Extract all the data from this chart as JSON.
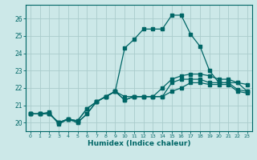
{
  "title": "",
  "xlabel": "Humidex (Indice chaleur)",
  "ylabel": "",
  "bg_color": "#cce8e8",
  "grid_color": "#aacccc",
  "line_color": "#006666",
  "xlim": [
    -0.5,
    23.5
  ],
  "ylim": [
    19.5,
    26.8
  ],
  "xticks": [
    0,
    1,
    2,
    3,
    4,
    5,
    6,
    7,
    8,
    9,
    10,
    11,
    12,
    13,
    14,
    15,
    16,
    17,
    18,
    19,
    20,
    21,
    22,
    23
  ],
  "yticks": [
    20,
    21,
    22,
    23,
    24,
    25,
    26
  ],
  "series": {
    "line1": {
      "x": [
        0,
        1,
        2,
        3,
        4,
        5,
        6,
        7,
        8,
        9,
        10,
        11,
        12,
        13,
        14,
        15,
        16,
        17,
        18,
        19,
        20,
        21,
        22,
        23
      ],
      "y": [
        20.5,
        20.5,
        20.5,
        20.0,
        20.2,
        20.0,
        20.5,
        21.2,
        21.5,
        21.8,
        21.3,
        21.5,
        21.5,
        21.5,
        21.5,
        21.8,
        22.0,
        22.3,
        22.3,
        22.2,
        22.2,
        22.2,
        21.8,
        21.7
      ]
    },
    "line2": {
      "x": [
        0,
        1,
        2,
        3,
        4,
        5,
        6,
        7,
        8,
        9,
        10,
        11,
        12,
        13,
        14,
        15,
        16,
        17,
        18,
        19,
        20,
        21,
        22,
        23
      ],
      "y": [
        20.5,
        20.5,
        20.6,
        19.9,
        20.2,
        20.1,
        20.8,
        21.2,
        21.5,
        21.8,
        24.3,
        24.8,
        25.4,
        25.4,
        25.4,
        26.2,
        26.2,
        25.1,
        24.4,
        23.0,
        22.3,
        22.3,
        22.3,
        21.8
      ]
    },
    "line3": {
      "x": [
        0,
        1,
        2,
        3,
        4,
        5,
        6,
        7,
        8,
        9,
        10,
        11,
        12,
        13,
        14,
        15,
        16,
        17,
        18,
        19,
        20,
        21,
        22,
        23
      ],
      "y": [
        20.5,
        20.5,
        20.5,
        20.0,
        20.2,
        20.0,
        20.5,
        21.2,
        21.5,
        21.8,
        21.3,
        21.5,
        21.5,
        21.5,
        21.5,
        22.3,
        22.5,
        22.5,
        22.5,
        22.3,
        22.3,
        22.3,
        21.9,
        21.8
      ]
    },
    "line4": {
      "x": [
        0,
        1,
        2,
        3,
        4,
        5,
        6,
        7,
        8,
        9,
        10,
        11,
        12,
        13,
        14,
        15,
        16,
        17,
        18,
        19,
        20,
        21,
        22,
        23
      ],
      "y": [
        20.5,
        20.5,
        20.5,
        20.0,
        20.2,
        20.1,
        20.8,
        21.2,
        21.5,
        21.8,
        21.5,
        21.5,
        21.5,
        21.5,
        22.0,
        22.5,
        22.7,
        22.8,
        22.8,
        22.7,
        22.5,
        22.5,
        22.3,
        22.2
      ]
    }
  }
}
